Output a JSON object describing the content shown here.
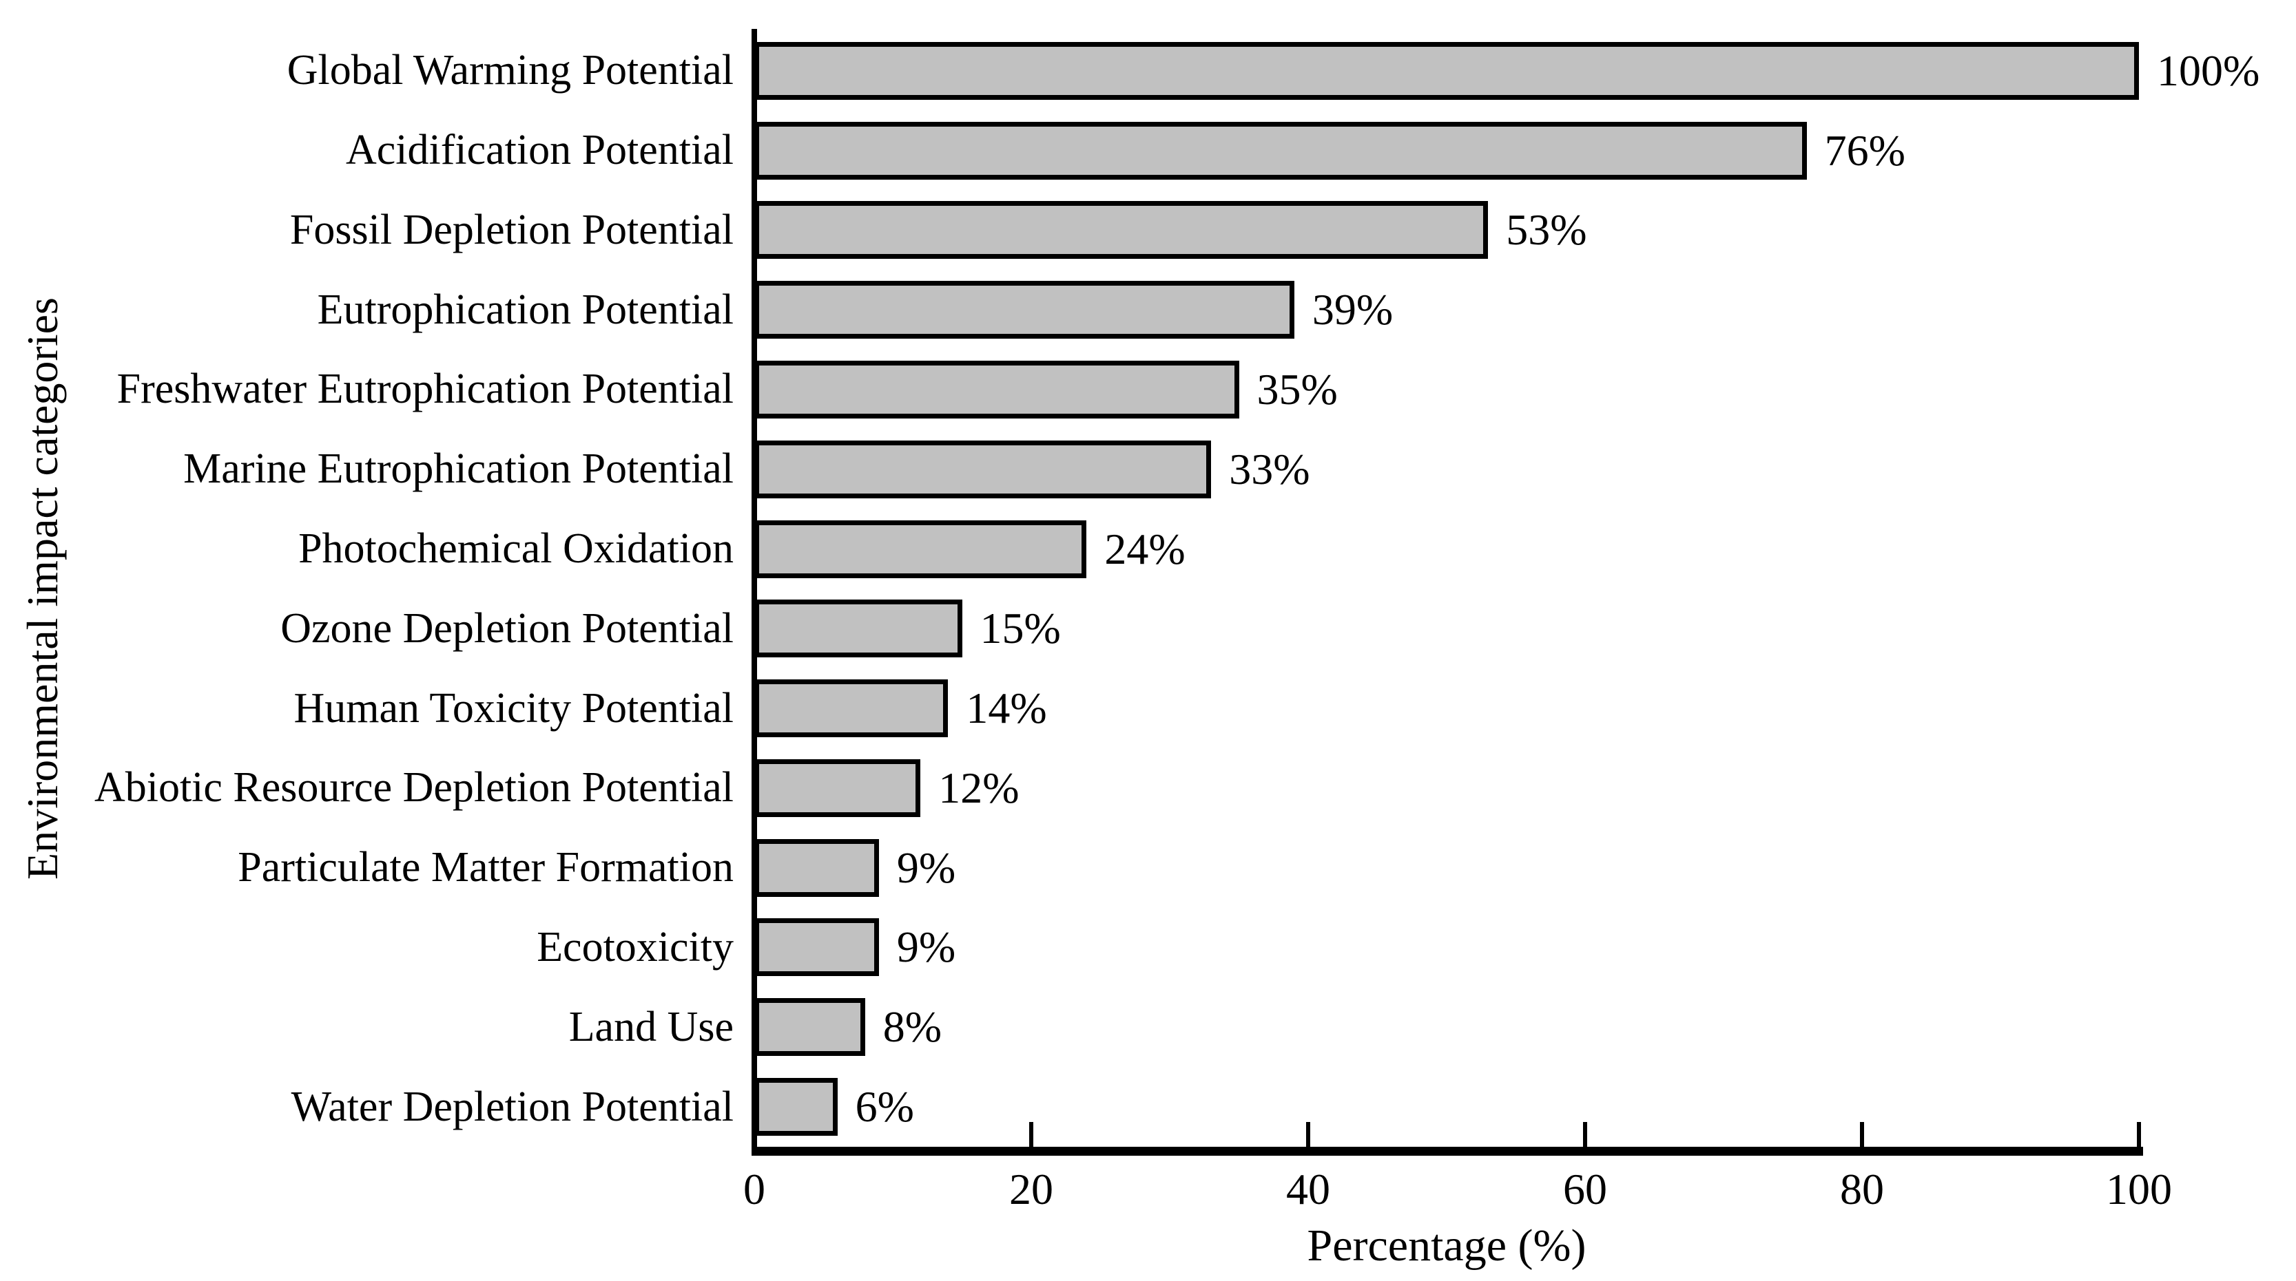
{
  "chart_data": {
    "type": "bar",
    "orientation": "horizontal",
    "title": "",
    "xlabel": "Percentage (%)",
    "ylabel": "Environmental impact categories",
    "categories": [
      "Global Warming Potential",
      "Acidification Potential",
      "Fossil Depletion Potential",
      "Eutrophication Potential",
      "Freshwater Eutrophication Potential",
      "Marine Eutrophication Potential",
      "Photochemical Oxidation",
      "Ozone Depletion Potential",
      "Human Toxicity Potential",
      "Abiotic Resource Depletion Potential",
      "Particulate Matter Formation",
      "Ecotoxicity",
      "Land Use",
      "Water Depletion Potential"
    ],
    "values": [
      100,
      76,
      53,
      39,
      35,
      33,
      24,
      15,
      14,
      12,
      9,
      9,
      8,
      6
    ],
    "value_labels": [
      "100%",
      "76%",
      "53%",
      "39%",
      "35%",
      "33%",
      "24%",
      "15%",
      "14%",
      "12%",
      "9%",
      "9%",
      "8%",
      "6%"
    ],
    "x_ticks": [
      0,
      20,
      40,
      60,
      80,
      100
    ],
    "x_tick_labels": [
      "0",
      "20",
      "40",
      "60",
      "80",
      "100"
    ],
    "xlim": [
      0,
      100
    ],
    "grid": false,
    "legend": "none",
    "colors": {
      "bar_fill": "#C1C1C1",
      "bar_border": "#000000",
      "axis": "#000000",
      "text": "#000000",
      "background": "#FFFFFF"
    }
  }
}
